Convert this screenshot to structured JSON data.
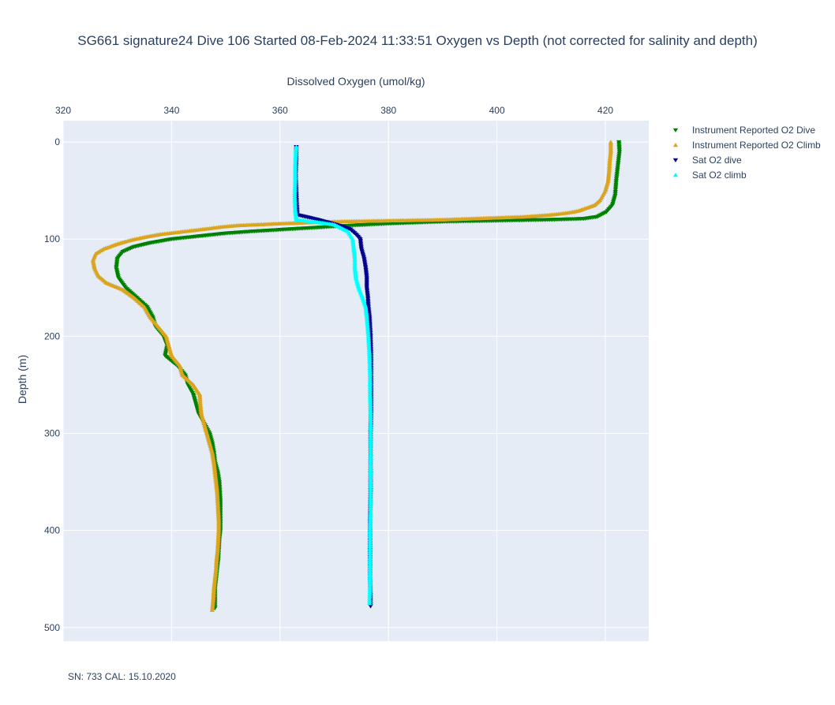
{
  "chart_data": {
    "type": "scatter",
    "title": "SG661 signature24 Dive 106 Started 08-Feb-2024 11:33:51  Oxygen vs Depth (not corrected for salinity and depth)",
    "xlabel": "Dissolved Oxygen (umol/kg)",
    "ylabel": "Depth (m)",
    "xlim": [
      320,
      428
    ],
    "ylim": [
      514,
      -22
    ],
    "x_axis_position": "top",
    "x_ticks": [
      "320",
      "340",
      "360",
      "380",
      "400",
      "420"
    ],
    "x_tick_values": [
      320,
      340,
      360,
      380,
      400,
      420
    ],
    "y_ticks": [
      "0",
      "100",
      "200",
      "300",
      "400",
      "500"
    ],
    "y_tick_values": [
      0,
      100,
      200,
      300,
      400,
      500
    ],
    "grid": true,
    "legend_position": "top-right",
    "series": [
      {
        "name": "Instrument Reported O2 Dive",
        "color": "#008000",
        "marker": "triangle-down",
        "points": [
          [
            422.5,
            0
          ],
          [
            422.6,
            10
          ],
          [
            422.3,
            25
          ],
          [
            422.0,
            40
          ],
          [
            421.8,
            55
          ],
          [
            421.3,
            65
          ],
          [
            420.2,
            72
          ],
          [
            418.5,
            77
          ],
          [
            416.0,
            79
          ],
          [
            410.0,
            80
          ],
          [
            400.0,
            81
          ],
          [
            390.0,
            82
          ],
          [
            385.0,
            83
          ],
          [
            380.0,
            84
          ],
          [
            373.0,
            86
          ],
          [
            367.0,
            88
          ],
          [
            361.0,
            90
          ],
          [
            355.0,
            92
          ],
          [
            350.0,
            94
          ],
          [
            345.0,
            97
          ],
          [
            340.0,
            100
          ],
          [
            336.0,
            104
          ],
          [
            333.0,
            108
          ],
          [
            331.0,
            113
          ],
          [
            330.0,
            120
          ],
          [
            329.8,
            130
          ],
          [
            330.2,
            140
          ],
          [
            331.5,
            150
          ],
          [
            333.5,
            160
          ],
          [
            335.5,
            170
          ],
          [
            336.5,
            180
          ],
          [
            337.0,
            190
          ],
          [
            338.5,
            200
          ],
          [
            339.2,
            210
          ],
          [
            338.8,
            220
          ],
          [
            341.0,
            230
          ],
          [
            342.5,
            240
          ],
          [
            343.0,
            250
          ],
          [
            344.0,
            260
          ],
          [
            344.5,
            270
          ],
          [
            345.0,
            280
          ],
          [
            346.0,
            290
          ],
          [
            347.0,
            300
          ],
          [
            347.5,
            310
          ],
          [
            347.8,
            320
          ],
          [
            348.0,
            330
          ],
          [
            348.5,
            340
          ],
          [
            348.8,
            350
          ],
          [
            348.9,
            360
          ],
          [
            349.0,
            370
          ],
          [
            349.0,
            380
          ],
          [
            349.0,
            390
          ],
          [
            349.0,
            400
          ],
          [
            348.8,
            410
          ],
          [
            348.7,
            420
          ],
          [
            348.6,
            430
          ],
          [
            348.4,
            440
          ],
          [
            348.2,
            450
          ],
          [
            348.0,
            460
          ],
          [
            348.0,
            470
          ],
          [
            348.0,
            480
          ]
        ]
      },
      {
        "name": "Instrument Reported O2 Climb",
        "color": "#daa520",
        "marker": "triangle-up",
        "points": [
          [
            347.5,
            482
          ],
          [
            347.7,
            470
          ],
          [
            347.8,
            460
          ],
          [
            348.0,
            450
          ],
          [
            348.2,
            440
          ],
          [
            348.3,
            430
          ],
          [
            348.5,
            420
          ],
          [
            348.6,
            410
          ],
          [
            348.7,
            400
          ],
          [
            348.7,
            390
          ],
          [
            348.6,
            380
          ],
          [
            348.5,
            370
          ],
          [
            348.4,
            360
          ],
          [
            348.2,
            350
          ],
          [
            348.0,
            340
          ],
          [
            347.8,
            330
          ],
          [
            347.5,
            320
          ],
          [
            347.0,
            310
          ],
          [
            346.5,
            300
          ],
          [
            346.0,
            290
          ],
          [
            345.5,
            280
          ],
          [
            345.3,
            270
          ],
          [
            345.2,
            260
          ],
          [
            344.0,
            250
          ],
          [
            342.0,
            240
          ],
          [
            341.5,
            230
          ],
          [
            340.0,
            220
          ],
          [
            339.5,
            210
          ],
          [
            339.0,
            200
          ],
          [
            337.5,
            190
          ],
          [
            336.0,
            180
          ],
          [
            335.0,
            170
          ],
          [
            333.0,
            160
          ],
          [
            331.0,
            152
          ],
          [
            328.0,
            145
          ],
          [
            326.5,
            138
          ],
          [
            325.8,
            130
          ],
          [
            325.5,
            122
          ],
          [
            326.0,
            115
          ],
          [
            327.5,
            110
          ],
          [
            330.0,
            105
          ],
          [
            332.5,
            101
          ],
          [
            335.0,
            98
          ],
          [
            338.0,
            95
          ],
          [
            341.0,
            93
          ],
          [
            344.0,
            91
          ],
          [
            347.0,
            89
          ],
          [
            349.0,
            87.5
          ],
          [
            352.0,
            86
          ],
          [
            356.0,
            85
          ],
          [
            360.0,
            84
          ],
          [
            365.0,
            83
          ],
          [
            370.0,
            82
          ],
          [
            375.0,
            81.5
          ],
          [
            380.0,
            81
          ],
          [
            385.0,
            80.5
          ],
          [
            390.0,
            80
          ],
          [
            395.0,
            79
          ],
          [
            400.0,
            78
          ],
          [
            405.0,
            77
          ],
          [
            410.0,
            75
          ],
          [
            413.0,
            73
          ],
          [
            415.0,
            71
          ],
          [
            416.5,
            68
          ],
          [
            418.0,
            65
          ],
          [
            419.0,
            60
          ],
          [
            420.0,
            50
          ],
          [
            420.5,
            40
          ],
          [
            420.7,
            30
          ],
          [
            420.8,
            20
          ],
          [
            421.0,
            10
          ],
          [
            421.0,
            0
          ]
        ]
      },
      {
        "name": "Sat O2 dive",
        "color": "#00008b",
        "marker": "triangle-down",
        "points": [
          [
            363.0,
            5
          ],
          [
            363.0,
            20
          ],
          [
            362.9,
            35
          ],
          [
            363.0,
            50
          ],
          [
            363.1,
            65
          ],
          [
            363.2,
            75
          ],
          [
            367.0,
            80
          ],
          [
            369.0,
            83
          ],
          [
            371.5,
            87
          ],
          [
            373.0,
            90
          ],
          [
            374.0,
            95
          ],
          [
            374.8,
            100
          ],
          [
            375.0,
            110
          ],
          [
            375.5,
            120
          ],
          [
            375.8,
            130
          ],
          [
            376.0,
            140
          ],
          [
            376.0,
            150
          ],
          [
            376.2,
            160
          ],
          [
            376.3,
            170
          ],
          [
            376.5,
            180
          ],
          [
            376.6,
            190
          ],
          [
            376.7,
            200
          ],
          [
            376.8,
            220
          ],
          [
            376.8,
            250
          ],
          [
            376.8,
            280
          ],
          [
            376.7,
            300
          ],
          [
            376.7,
            330
          ],
          [
            376.7,
            360
          ],
          [
            376.6,
            390
          ],
          [
            376.6,
            420
          ],
          [
            376.6,
            450
          ],
          [
            376.7,
            470
          ],
          [
            376.7,
            478
          ]
        ]
      },
      {
        "name": "Sat O2 climb",
        "color": "#00ffff",
        "marker": "triangle-up",
        "points": [
          [
            376.5,
            475
          ],
          [
            376.6,
            460
          ],
          [
            376.6,
            440
          ],
          [
            376.6,
            420
          ],
          [
            376.6,
            400
          ],
          [
            376.7,
            380
          ],
          [
            376.7,
            360
          ],
          [
            376.7,
            340
          ],
          [
            376.7,
            320
          ],
          [
            376.7,
            300
          ],
          [
            376.7,
            280
          ],
          [
            376.6,
            260
          ],
          [
            376.6,
            240
          ],
          [
            376.5,
            220
          ],
          [
            376.3,
            200
          ],
          [
            376.0,
            180
          ],
          [
            375.8,
            170
          ],
          [
            375.2,
            160
          ],
          [
            374.5,
            150
          ],
          [
            374.0,
            140
          ],
          [
            373.8,
            130
          ],
          [
            373.8,
            120
          ],
          [
            373.6,
            110
          ],
          [
            373.4,
            100
          ],
          [
            372.5,
            92
          ],
          [
            370.0,
            85
          ],
          [
            366.0,
            82
          ],
          [
            363.0,
            80
          ],
          [
            362.8,
            70
          ],
          [
            362.7,
            55
          ],
          [
            362.8,
            40
          ],
          [
            362.8,
            25
          ],
          [
            362.9,
            10
          ],
          [
            363.0,
            5
          ]
        ]
      }
    ]
  },
  "footer": {
    "text": "SN: 733  CAL: 15.10.2020"
  }
}
